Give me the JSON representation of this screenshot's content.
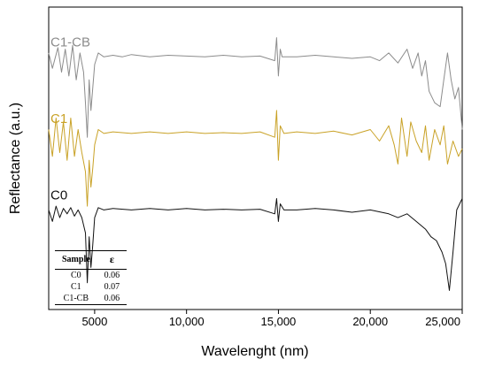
{
  "chart_data": {
    "type": "line",
    "xlabel": "Wavelenght (nm)",
    "ylabel": "Reflectance (a.u.)",
    "xlim": [
      2500,
      25000
    ],
    "xticks": [
      5000,
      10000,
      15000,
      20000,
      25000
    ],
    "xtick_labels": [
      "5000",
      "10,000",
      "15,000",
      "20,000",
      "25,000"
    ],
    "y_ticks_shown": false,
    "legend": "inline-labels-left",
    "series": [
      {
        "name": "C1-CB",
        "color": "#8c8c8c",
        "offset": 2.0,
        "x": [
          2500,
          2700,
          3000,
          3200,
          3400,
          3600,
          3800,
          4000,
          4200,
          4400,
          4500,
          4600,
          4700,
          4800,
          4900,
          5000,
          5200,
          5500,
          6000,
          6500,
          7000,
          8000,
          9000,
          10000,
          11000,
          12000,
          13000,
          14000,
          14800,
          14900,
          15000,
          15100,
          15200,
          16000,
          17000,
          18000,
          19000,
          20000,
          20500,
          21000,
          21500,
          22000,
          22300,
          22600,
          22800,
          23000,
          23200,
          23500,
          23800,
          24000,
          24200,
          24400,
          24600,
          24800,
          25000
        ],
        "values": [
          0.05,
          -0.15,
          0.12,
          -0.2,
          0.1,
          -0.25,
          0.15,
          -0.3,
          0.05,
          -0.2,
          -0.6,
          -1.05,
          -0.3,
          -0.7,
          -0.4,
          -0.1,
          0.05,
          0.0,
          0.02,
          0.0,
          0.03,
          0.0,
          0.02,
          0.01,
          0.0,
          0.02,
          0.0,
          0.01,
          -0.05,
          0.25,
          -0.25,
          0.1,
          0.0,
          0.0,
          0.02,
          0.0,
          -0.02,
          0.0,
          -0.05,
          0.05,
          -0.08,
          0.1,
          -0.15,
          0.05,
          -0.25,
          -0.05,
          -0.45,
          -0.6,
          -0.65,
          -0.3,
          0.05,
          -0.3,
          -0.55,
          -0.4,
          -0.95
        ]
      },
      {
        "name": "C1",
        "color": "#c9a227",
        "offset": 1.0,
        "x": [
          2500,
          2700,
          2900,
          3100,
          3300,
          3500,
          3700,
          3900,
          4100,
          4300,
          4500,
          4600,
          4700,
          4800,
          4900,
          5000,
          5200,
          5500,
          6000,
          7000,
          8000,
          9000,
          10000,
          11000,
          12000,
          13000,
          14000,
          14800,
          14900,
          15000,
          15100,
          15300,
          16000,
          17000,
          18000,
          19000,
          20000,
          20500,
          21000,
          21300,
          21500,
          21700,
          22000,
          22200,
          22500,
          22800,
          23000,
          23200,
          23500,
          23800,
          24000,
          24200,
          24500,
          24800,
          25000
        ],
        "values": [
          0.05,
          -0.3,
          0.2,
          -0.25,
          0.15,
          -0.35,
          0.2,
          -0.3,
          0.05,
          -0.25,
          -0.5,
          -0.95,
          -0.35,
          -0.7,
          -0.45,
          -0.15,
          0.05,
          0.0,
          0.02,
          0.0,
          0.02,
          0.0,
          0.02,
          0.0,
          0.01,
          0.0,
          0.02,
          -0.05,
          0.3,
          -0.35,
          0.1,
          0.0,
          0.02,
          0.0,
          0.03,
          -0.02,
          0.05,
          -0.1,
          0.1,
          -0.15,
          -0.4,
          0.2,
          -0.3,
          0.15,
          -0.1,
          -0.25,
          0.1,
          -0.35,
          0.05,
          -0.15,
          0.1,
          -0.4,
          -0.1,
          -0.3,
          -0.2
        ]
      },
      {
        "name": "C0",
        "color": "#111111",
        "offset": 0.0,
        "x": [
          2500,
          2700,
          2900,
          3100,
          3300,
          3500,
          3700,
          3900,
          4100,
          4300,
          4500,
          4600,
          4700,
          4800,
          4900,
          5000,
          5200,
          5500,
          6000,
          7000,
          8000,
          9000,
          10000,
          11000,
          12000,
          13000,
          14000,
          14800,
          14900,
          15000,
          15100,
          15300,
          16000,
          17000,
          18000,
          19000,
          20000,
          21000,
          21500,
          22000,
          22500,
          23000,
          23300,
          23600,
          23900,
          24100,
          24300,
          24500,
          24700,
          25000
        ],
        "values": [
          0.0,
          -0.15,
          0.05,
          -0.1,
          0.02,
          -0.05,
          0.03,
          -0.08,
          0.0,
          -0.1,
          -0.3,
          -0.95,
          -0.35,
          -0.75,
          -0.45,
          -0.1,
          0.03,
          0.0,
          0.02,
          0.0,
          0.02,
          0.0,
          0.02,
          0.0,
          0.01,
          0.0,
          0.01,
          -0.05,
          0.15,
          -0.15,
          0.08,
          0.0,
          0.0,
          0.02,
          0.0,
          -0.03,
          0.0,
          -0.05,
          -0.1,
          -0.05,
          -0.15,
          -0.25,
          -0.35,
          -0.4,
          -0.55,
          -0.7,
          -1.05,
          -0.55,
          0.0,
          0.15
        ]
      }
    ]
  },
  "inset_table": {
    "headers": [
      "Sample",
      "ε"
    ],
    "rows": [
      [
        "C0",
        "0.06"
      ],
      [
        "C1",
        "0.07"
      ],
      [
        "C1-CB",
        "0.06"
      ]
    ]
  }
}
